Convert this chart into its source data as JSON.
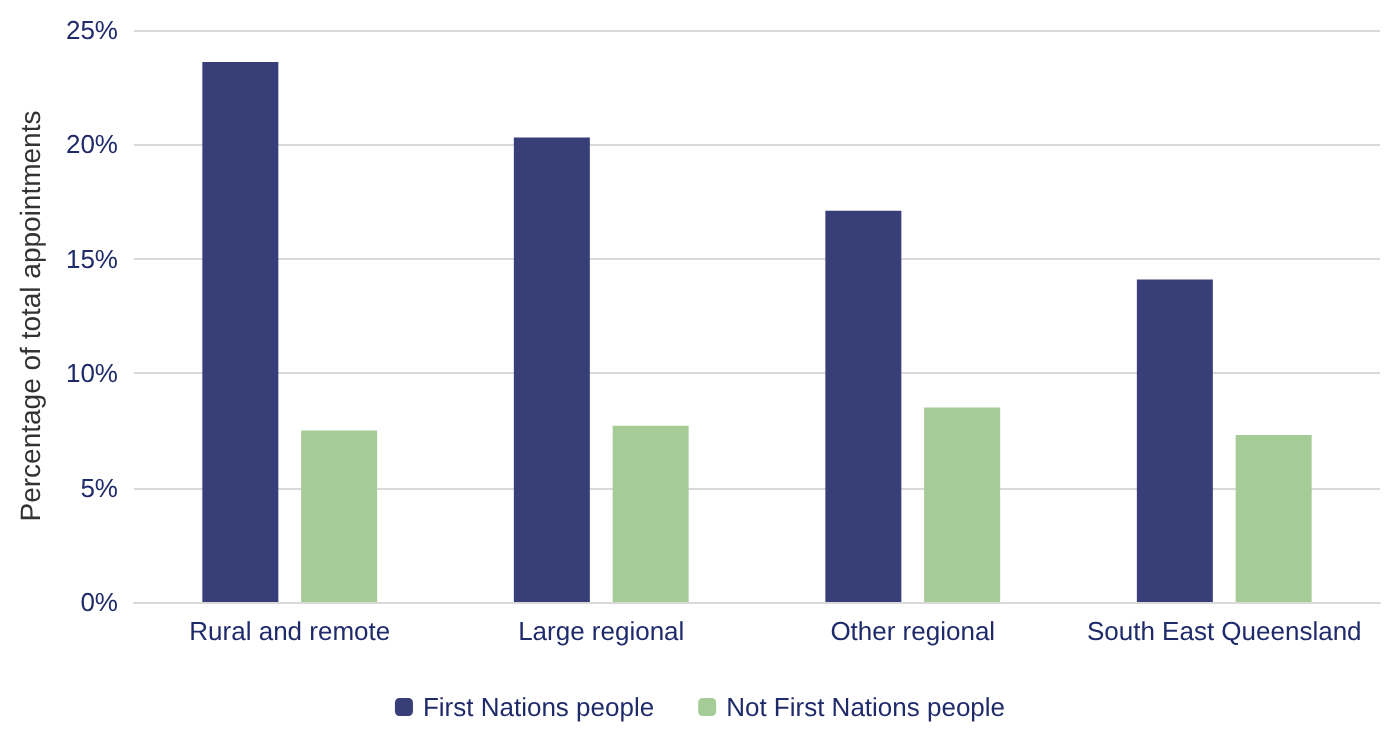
{
  "chart_data": {
    "type": "bar",
    "ylabel": "Percentage of total appointments",
    "categories": [
      "Rural and remote",
      "Large regional",
      "Other regional",
      "South East Queensland"
    ],
    "series": [
      {
        "name": "First Nations people",
        "color": "#383e78",
        "values": [
          23.6,
          20.3,
          17.1,
          14.1
        ]
      },
      {
        "name": "Not First Nations people",
        "color": "#a5cc96",
        "values": [
          7.5,
          7.7,
          8.5,
          7.3
        ]
      }
    ],
    "ylim": [
      0,
      25
    ],
    "yticks": [
      {
        "value": 0,
        "label": "0%"
      },
      {
        "value": 5,
        "label": "5%"
      },
      {
        "value": 10,
        "label": "10%"
      },
      {
        "value": 15,
        "label": "15%"
      },
      {
        "value": 20,
        "label": "20%"
      },
      {
        "value": 25,
        "label": "25%"
      }
    ],
    "grid": "y",
    "legend": "bottom"
  }
}
